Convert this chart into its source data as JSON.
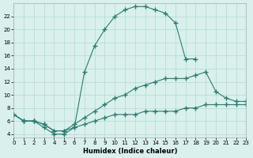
{
  "xlabel": "Humidex (Indice chaleur)",
  "bg_color": "#d9f0ed",
  "grid_color": "#b8ddd8",
  "line_color": "#2e7b6e",
  "curve1_x": [
    0,
    1,
    2,
    3,
    4,
    5,
    6,
    7,
    8,
    9,
    10,
    11,
    12,
    13,
    14,
    15,
    16,
    17,
    18
  ],
  "curve1_y": [
    7,
    6,
    6,
    5,
    4,
    4,
    5,
    13.5,
    17.5,
    20,
    22,
    23,
    23.5,
    23.5,
    23,
    22.5,
    21,
    15.5,
    15.5
  ],
  "curve2_x": [
    0,
    1,
    2,
    3,
    4,
    5,
    6,
    7,
    8,
    9,
    10,
    11,
    12,
    13,
    14,
    15,
    16,
    17,
    18,
    19,
    20,
    21,
    22,
    23
  ],
  "curve2_y": [
    7,
    6,
    6,
    5.5,
    4.5,
    4.5,
    5.5,
    6.5,
    7.5,
    8.5,
    9.5,
    10,
    11,
    11.5,
    12,
    12.5,
    12.5,
    12.5,
    13,
    13.5,
    10.5,
    9.5,
    9,
    9
  ],
  "curve3_x": [
    0,
    1,
    2,
    3,
    4,
    5,
    6,
    7,
    8,
    9,
    10,
    11,
    12,
    13,
    14,
    15,
    16,
    17,
    18,
    19,
    20,
    21,
    22,
    23
  ],
  "curve3_y": [
    7,
    6,
    6,
    5.5,
    4.5,
    4.5,
    5,
    5.5,
    6,
    6.5,
    7,
    7,
    7,
    7.5,
    7.5,
    7.5,
    7.5,
    8,
    8,
    8.5,
    8.5,
    8.5,
    8.5,
    8.5
  ],
  "xlim": [
    0,
    23
  ],
  "ylim": [
    3.5,
    24
  ],
  "xticks": [
    0,
    1,
    2,
    3,
    4,
    5,
    6,
    7,
    8,
    9,
    10,
    11,
    12,
    13,
    14,
    15,
    16,
    17,
    18,
    19,
    20,
    21,
    22,
    23
  ],
  "yticks": [
    4,
    6,
    8,
    10,
    12,
    14,
    16,
    18,
    20,
    22
  ]
}
